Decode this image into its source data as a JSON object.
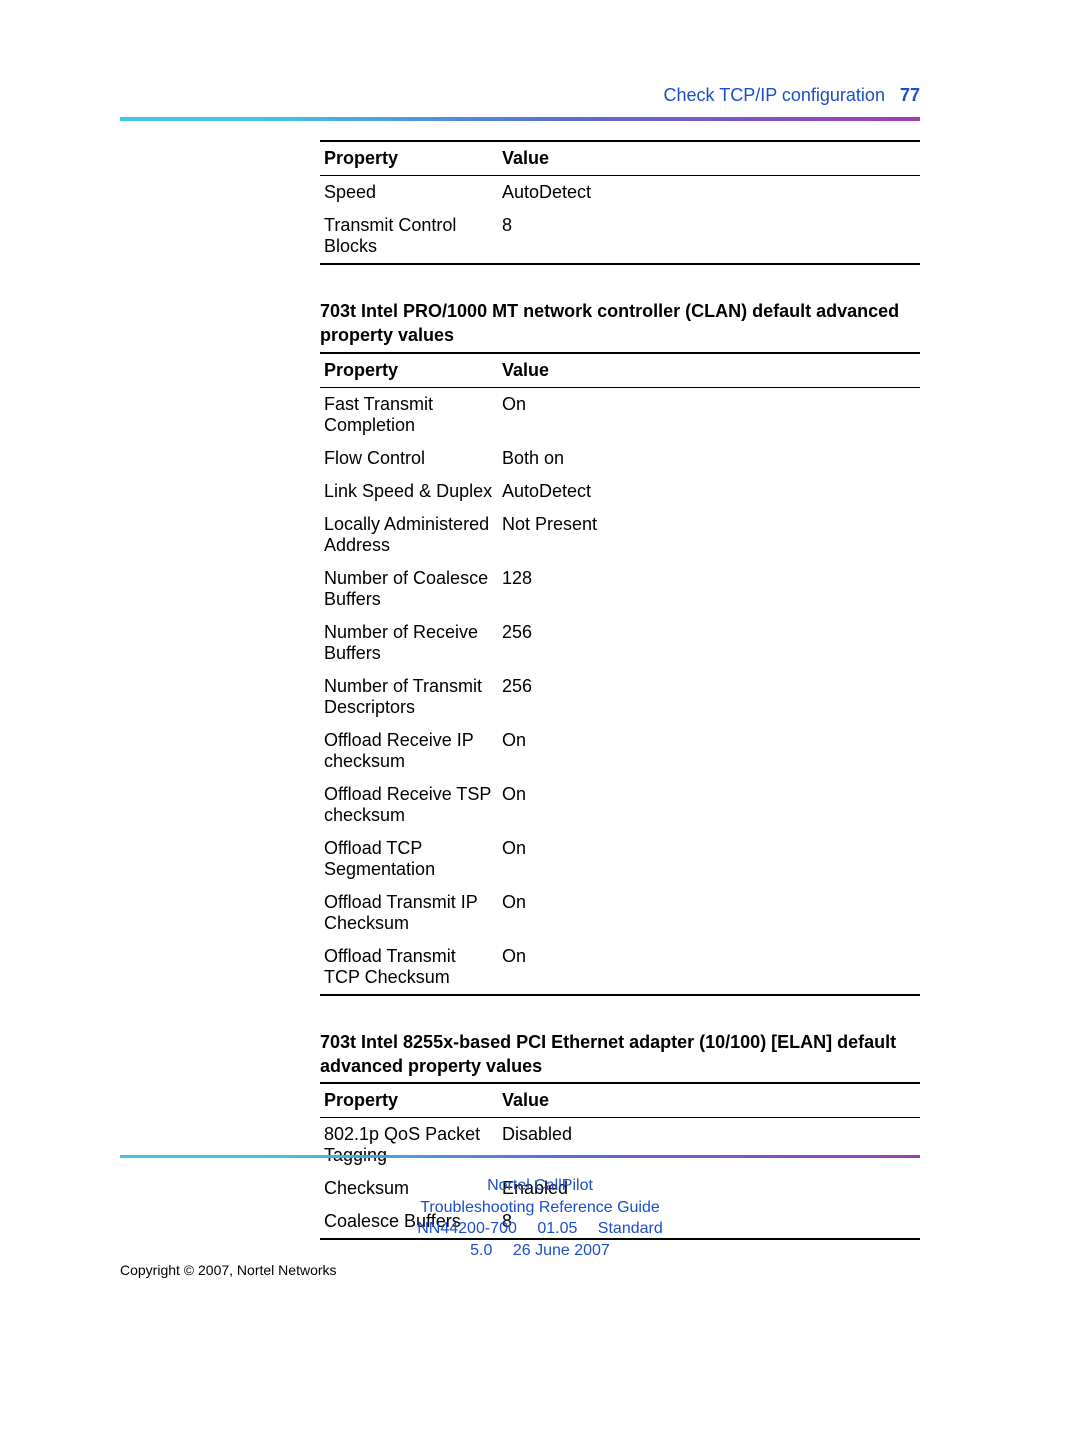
{
  "header": {
    "running_title": "Check TCP/IP configuration",
    "page_number": "77"
  },
  "colors": {
    "link": "#1a4fc9",
    "rule_gradient_start": "#3fc6e6",
    "rule_gradient_mid": "#5a6dd4",
    "rule_gradient_end": "#a03db5",
    "text": "#000000",
    "background": "#ffffff"
  },
  "typography": {
    "body_fontsize_pt": 13.5,
    "family": "Arial"
  },
  "table1": {
    "columns": [
      "Property",
      "Value"
    ],
    "rows": [
      [
        "Speed",
        "AutoDetect"
      ],
      [
        "Transmit Control Blocks",
        "8"
      ]
    ]
  },
  "section2_title": "703t Intel PRO/1000 MT network controller (CLAN) default advanced property values",
  "table2": {
    "columns": [
      "Property",
      "Value"
    ],
    "rows": [
      [
        "Fast Transmit Completion",
        "On"
      ],
      [
        "Flow Control",
        "Both on"
      ],
      [
        "Link Speed & Duplex",
        "AutoDetect"
      ],
      [
        "Locally Administered Address",
        "Not Present"
      ],
      [
        "Number of Coalesce Buffers",
        "128"
      ],
      [
        "Number of Receive Buffers",
        "256"
      ],
      [
        "Number of Transmit Descriptors",
        "256"
      ],
      [
        "Offload Receive IP checksum",
        "On"
      ],
      [
        "Offload Receive TSP checksum",
        "On"
      ],
      [
        "Offload TCP Segmentation",
        "On"
      ],
      [
        "Offload Transmit IP Checksum",
        "On"
      ],
      [
        "Offload Transmit TCP Checksum",
        "On"
      ]
    ]
  },
  "section3_title": "703t Intel 8255x-based PCI Ethernet adapter (10/100) [ELAN] default advanced property values",
  "table3": {
    "columns": [
      "Property",
      "Value"
    ],
    "rows": [
      [
        "802.1p QoS Packet Tagging",
        "Disabled"
      ],
      [
        "Checksum",
        "Enabled"
      ],
      [
        "Coalesce Buffers",
        "8"
      ]
    ]
  },
  "footer": {
    "line1": "Nortel CallPilot",
    "line2": "Troubleshooting Reference Guide",
    "line3": "NN44200-700  01.05  Standard",
    "line4": "5.0  26 June 2007"
  },
  "copyright": "Copyright © 2007, Nortel Networks"
}
